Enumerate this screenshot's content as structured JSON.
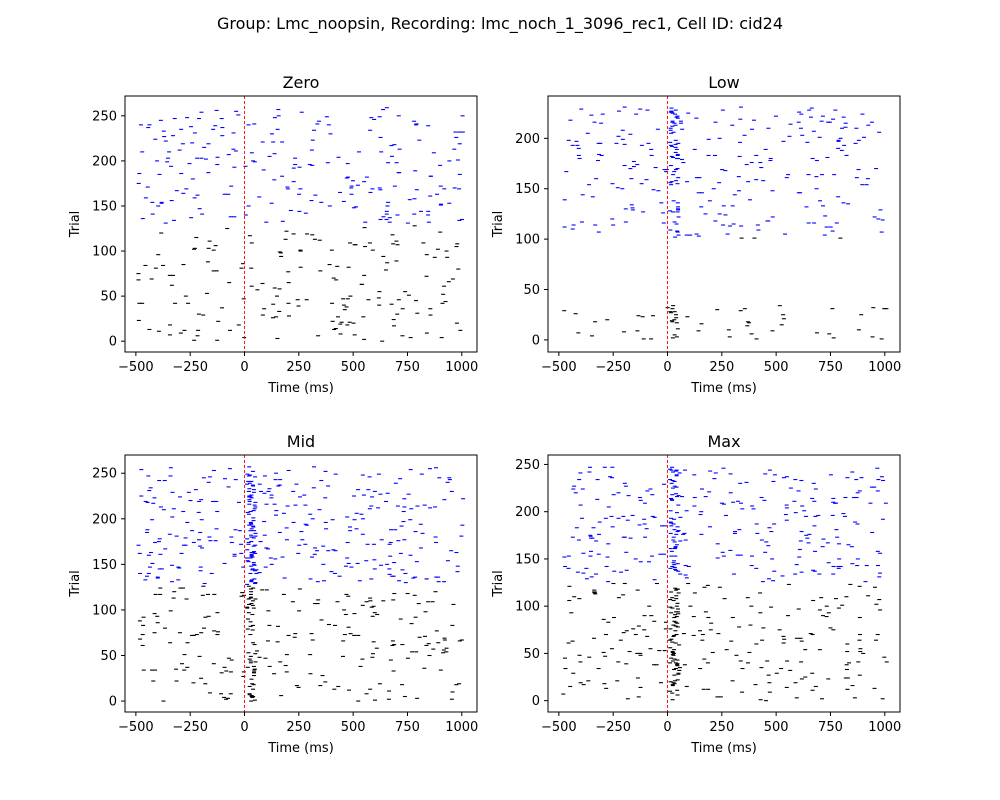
{
  "figure": {
    "suptitle": "Group: Lmc_noopsin, Recording: lmc_noch_1_3096_rec1, Cell ID: cid24"
  },
  "colors": {
    "baseline_spikes": "#000000",
    "laser_spikes": "#0000ff",
    "stim_line": "#ff0000",
    "axes": "#000000",
    "background": "#ffffff"
  },
  "chart_data": [
    {
      "type": "raster",
      "title": "Zero",
      "xlabel": "Time (ms)",
      "ylabel": "Trial",
      "xlim": [
        -550,
        1070
      ],
      "ylim": [
        -12,
        272
      ],
      "xticks": [
        -500,
        -250,
        0,
        250,
        500,
        750,
        1000
      ],
      "xtick_labels": [
        "−500",
        "−250",
        "0",
        "250",
        "500",
        "750",
        "1000"
      ],
      "yticks": [
        0,
        50,
        100,
        150,
        200,
        250
      ],
      "ytick_labels": [
        "0",
        "50",
        "100",
        "150",
        "200",
        "250"
      ],
      "stim_onset_ms": 0,
      "trials": 260,
      "laser_trials_from": 130,
      "spike_rate_hz": [
        1.05,
        1.0
      ],
      "stim_response": false
    },
    {
      "type": "raster",
      "title": "Low",
      "xlabel": "Time (ms)",
      "ylabel": "Trial",
      "xlim": [
        -550,
        1070
      ],
      "ylim": [
        -12,
        242
      ],
      "xticks": [
        -500,
        -250,
        0,
        250,
        500,
        750,
        1000
      ],
      "xtick_labels": [
        "−500",
        "−250",
        "0",
        "250",
        "500",
        "750",
        "1000"
      ],
      "yticks": [
        0,
        50,
        100,
        150,
        200
      ],
      "ytick_labels": [
        "0",
        "50",
        "100",
        "150",
        "200"
      ],
      "stim_onset_ms": 0,
      "trials": 232,
      "laser_trials_from": 102,
      "empty_trials": [
        35,
        100
      ],
      "spike_rate_hz": [
        1.15,
        1.0
      ],
      "stim_response": true
    },
    {
      "type": "raster",
      "title": "Mid",
      "xlabel": "Time (ms)",
      "ylabel": "Trial",
      "xlim": [
        -550,
        1070
      ],
      "ylim": [
        -12,
        270
      ],
      "xticks": [
        -500,
        -250,
        0,
        250,
        500,
        750,
        1000
      ],
      "xtick_labels": [
        "−500",
        "−250",
        "0",
        "250",
        "500",
        "750",
        "1000"
      ],
      "yticks": [
        0,
        50,
        100,
        150,
        200,
        250
      ],
      "ytick_labels": [
        "0",
        "50",
        "100",
        "150",
        "200",
        "250"
      ],
      "stim_onset_ms": 0,
      "trials": 258,
      "laser_trials_from": 128,
      "spike_rate_hz": [
        1.5,
        1.05
      ],
      "stim_response": true
    },
    {
      "type": "raster",
      "title": "Max",
      "xlabel": "Time (ms)",
      "ylabel": "Trial",
      "xlim": [
        -550,
        1070
      ],
      "ylim": [
        -12,
        260
      ],
      "xticks": [
        -500,
        -250,
        0,
        250,
        500,
        750,
        1000
      ],
      "xtick_labels": [
        "−500",
        "−250",
        "0",
        "250",
        "500",
        "750",
        "1000"
      ],
      "yticks": [
        0,
        50,
        100,
        150,
        200,
        250
      ],
      "ytick_labels": [
        "0",
        "50",
        "100",
        "150",
        "200",
        "250"
      ],
      "stim_onset_ms": 0,
      "trials": 248,
      "laser_trials_from": 125,
      "spike_rate_hz": [
        1.5,
        1.05
      ],
      "stim_response": true
    }
  ]
}
